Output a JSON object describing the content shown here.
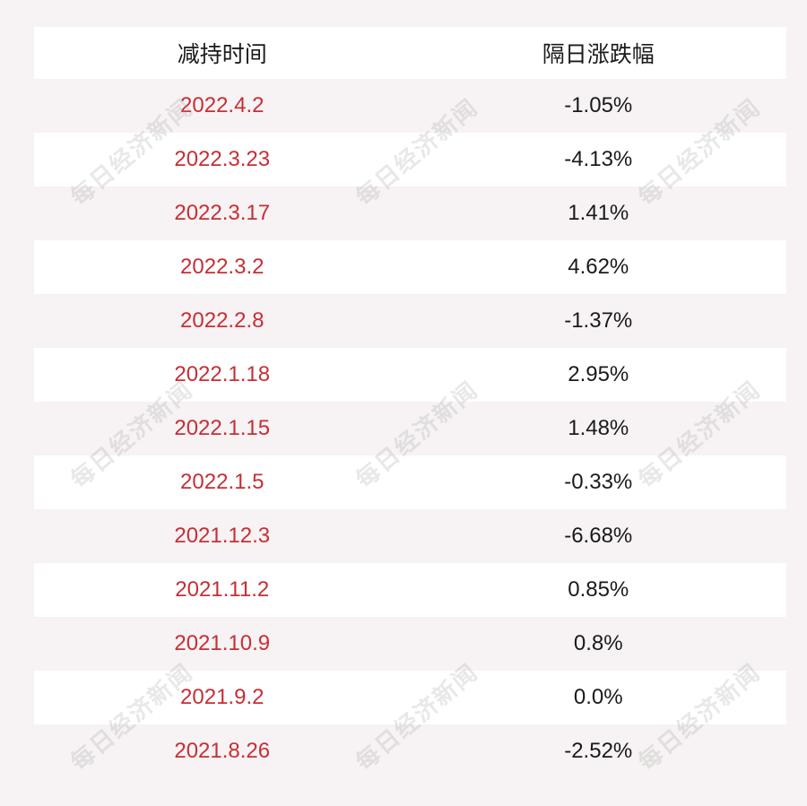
{
  "table": {
    "headers": {
      "date": "减持时间",
      "change": "隔日涨跌幅"
    },
    "rows": [
      {
        "date": "2022.4.2",
        "change": "-1.05%"
      },
      {
        "date": "2022.3.23",
        "change": "-4.13%"
      },
      {
        "date": "2022.3.17",
        "change": "1.41%"
      },
      {
        "date": "2022.3.2",
        "change": "4.62%"
      },
      {
        "date": "2022.2.8",
        "change": "-1.37%"
      },
      {
        "date": "2022.1.18",
        "change": "2.95%"
      },
      {
        "date": "2022.1.15",
        "change": "1.48%"
      },
      {
        "date": "2022.1.5",
        "change": "-0.33%"
      },
      {
        "date": "2021.12.3",
        "change": "-6.68%"
      },
      {
        "date": "2021.11.2",
        "change": "0.85%"
      },
      {
        "date": "2021.10.9",
        "change": "0.8%"
      },
      {
        "date": "2021.9.2",
        "change": "0.0%"
      },
      {
        "date": "2021.8.26",
        "change": "-2.52%"
      }
    ]
  },
  "watermark": {
    "text": "每日经济新闻"
  },
  "colors": {
    "date_text": "#c62f36",
    "value_text": "#1a1a1a",
    "stripe_light": "#f7f2f3",
    "stripe_white": "#ffffff"
  }
}
